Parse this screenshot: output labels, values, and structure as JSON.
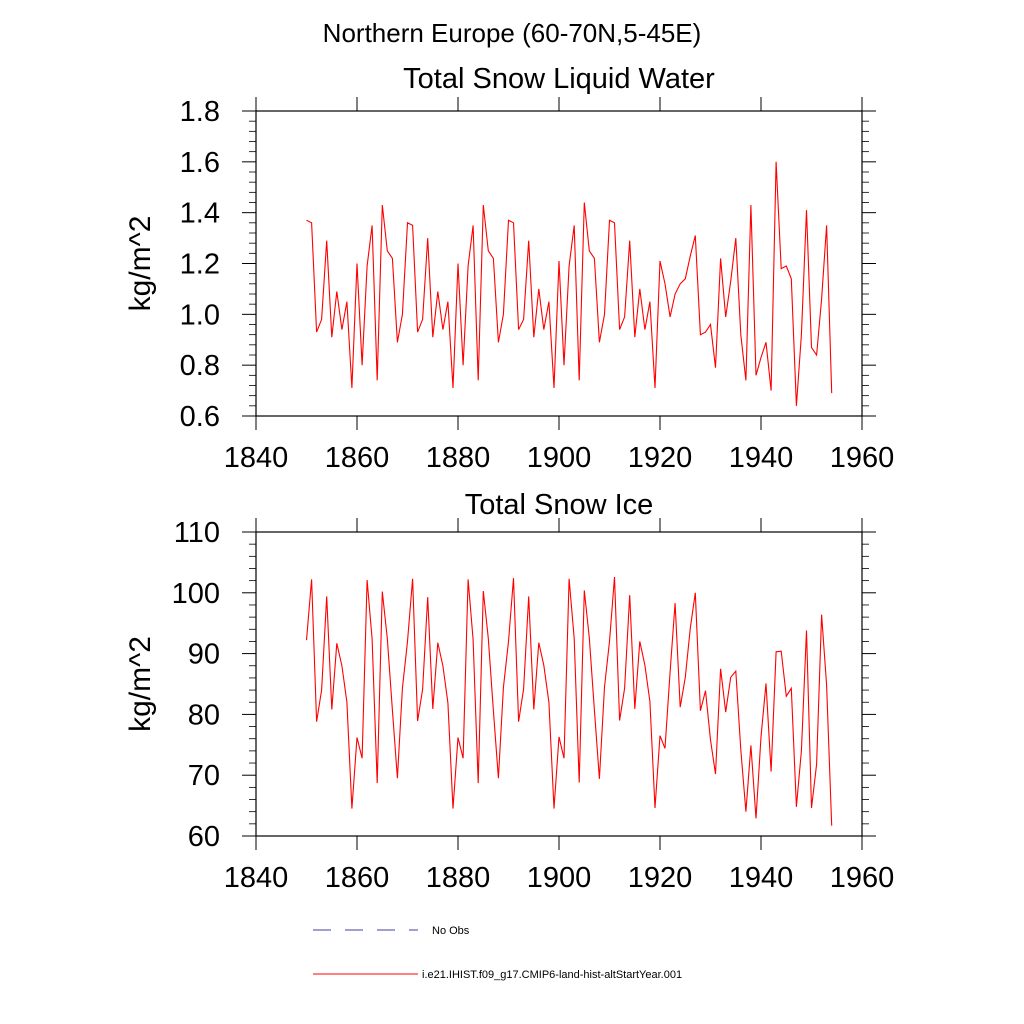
{
  "page_title": "Northern Europe (60-70N,5-45E)",
  "chart_data": [
    {
      "type": "line",
      "title": "Total Snow Liquid Water",
      "xlabel": "",
      "ylabel": "kg/m^2",
      "xlim": [
        1840,
        1960
      ],
      "ylim": [
        0.6,
        1.8
      ],
      "xticks": [
        1840,
        1860,
        1880,
        1900,
        1920,
        1940,
        1960
      ],
      "xtick_labels": [
        "1840",
        "1860",
        "1880",
        "1900",
        "1920",
        "1940",
        "1960"
      ],
      "yticks": [
        0.6,
        0.8,
        1.0,
        1.2,
        1.4,
        1.6,
        1.8
      ],
      "ytick_labels": [
        "0.6",
        "0.8",
        "1.0",
        "1.2",
        "1.4",
        "1.6",
        "1.8"
      ],
      "grid": false,
      "series": [
        {
          "name": "i.e21.IHIST.f09_g17.CMIP6-land-hist-altStartYear.001",
          "color": "#ff0000",
          "x": [
            1850,
            1851,
            1852,
            1853,
            1854,
            1855,
            1856,
            1857,
            1858,
            1859,
            1860,
            1861,
            1862,
            1863,
            1864,
            1865,
            1866,
            1867,
            1868,
            1869,
            1870,
            1871,
            1872,
            1873,
            1874,
            1875,
            1876,
            1877,
            1878,
            1879,
            1880,
            1881,
            1882,
            1883,
            1884,
            1885,
            1886,
            1887,
            1888,
            1889,
            1890,
            1891,
            1892,
            1893,
            1894,
            1895,
            1896,
            1897,
            1898,
            1899,
            1900,
            1901,
            1902,
            1903,
            1904,
            1905,
            1906,
            1907,
            1908,
            1909,
            1910,
            1911,
            1912,
            1913,
            1914,
            1915,
            1916,
            1917,
            1918,
            1919,
            1920,
            1921,
            1922,
            1923,
            1924,
            1925,
            1926,
            1927,
            1928,
            1929,
            1930,
            1931,
            1932,
            1933,
            1934,
            1935,
            1936,
            1937,
            1938,
            1939,
            1940,
            1941,
            1942,
            1943,
            1944,
            1945,
            1946,
            1947,
            1948,
            1949,
            1950,
            1951,
            1952,
            1953,
            1954
          ],
          "y": [
            1.37,
            1.36,
            0.93,
            0.98,
            1.29,
            0.91,
            1.09,
            0.94,
            1.05,
            0.71,
            1.2,
            0.8,
            1.19,
            1.35,
            0.74,
            1.43,
            1.25,
            1.22,
            0.89,
            1.0,
            1.36,
            1.35,
            0.93,
            0.98,
            1.3,
            0.91,
            1.09,
            0.94,
            1.05,
            0.71,
            1.2,
            0.8,
            1.19,
            1.35,
            0.74,
            1.43,
            1.25,
            1.22,
            0.89,
            1.0,
            1.37,
            1.36,
            0.94,
            0.98,
            1.29,
            0.91,
            1.1,
            0.94,
            1.05,
            0.71,
            1.21,
            0.8,
            1.19,
            1.35,
            0.74,
            1.44,
            1.25,
            1.22,
            0.89,
            1.0,
            1.37,
            1.36,
            0.94,
            0.99,
            1.29,
            0.91,
            1.1,
            0.94,
            1.05,
            0.71,
            1.21,
            1.12,
            0.99,
            1.08,
            1.12,
            1.14,
            1.23,
            1.31,
            0.92,
            0.93,
            0.96,
            0.79,
            1.22,
            0.99,
            1.13,
            1.3,
            0.92,
            0.74,
            1.43,
            0.76,
            0.83,
            0.89,
            0.7,
            1.6,
            1.18,
            1.19,
            1.14,
            0.64,
            0.92,
            1.41,
            0.87,
            0.84,
            1.06,
            1.35,
            0.69
          ]
        }
      ]
    },
    {
      "type": "line",
      "title": "Total Snow Ice",
      "xlabel": "",
      "ylabel": "kg/m^2",
      "xlim": [
        1840,
        1960
      ],
      "ylim": [
        60,
        110
      ],
      "xticks": [
        1840,
        1860,
        1880,
        1900,
        1920,
        1940,
        1960
      ],
      "xtick_labels": [
        "1840",
        "1860",
        "1880",
        "1900",
        "1920",
        "1940",
        "1960"
      ],
      "yticks": [
        60,
        70,
        80,
        90,
        100,
        110
      ],
      "ytick_labels": [
        "60",
        "70",
        "80",
        "90",
        "100",
        "110"
      ],
      "grid": false,
      "series": [
        {
          "name": "i.e21.IHIST.f09_g17.CMIP6-land-hist-altStartYear.001",
          "color": "#ff0000",
          "x": [
            1850,
            1851,
            1852,
            1853,
            1854,
            1855,
            1856,
            1857,
            1858,
            1859,
            1860,
            1861,
            1862,
            1863,
            1864,
            1865,
            1866,
            1867,
            1868,
            1869,
            1870,
            1871,
            1872,
            1873,
            1874,
            1875,
            1876,
            1877,
            1878,
            1879,
            1880,
            1881,
            1882,
            1883,
            1884,
            1885,
            1886,
            1887,
            1888,
            1889,
            1890,
            1891,
            1892,
            1893,
            1894,
            1895,
            1896,
            1897,
            1898,
            1899,
            1900,
            1901,
            1902,
            1903,
            1904,
            1905,
            1906,
            1907,
            1908,
            1909,
            1910,
            1911,
            1912,
            1913,
            1914,
            1915,
            1916,
            1917,
            1918,
            1919,
            1920,
            1921,
            1922,
            1923,
            1924,
            1925,
            1926,
            1927,
            1928,
            1929,
            1930,
            1931,
            1932,
            1933,
            1934,
            1935,
            1936,
            1937,
            1938,
            1939,
            1940,
            1941,
            1942,
            1943,
            1944,
            1945,
            1946,
            1947,
            1948,
            1949,
            1950,
            1951,
            1952,
            1953,
            1954
          ],
          "y": [
            92.2,
            102.2,
            78.8,
            84.0,
            99.4,
            80.8,
            91.7,
            88.0,
            82.0,
            64.5,
            76.2,
            72.8,
            102.1,
            92.4,
            68.7,
            100.2,
            92.5,
            80.7,
            69.5,
            84.3,
            92.0,
            102.3,
            78.9,
            84.1,
            99.3,
            80.9,
            91.8,
            88.0,
            81.9,
            64.5,
            76.2,
            72.8,
            102.2,
            92.3,
            68.7,
            100.3,
            92.5,
            80.6,
            69.5,
            84.4,
            92.0,
            102.4,
            78.8,
            84.2,
            99.4,
            80.8,
            91.8,
            88.1,
            82.0,
            64.5,
            76.3,
            72.8,
            102.3,
            92.5,
            68.8,
            100.4,
            92.6,
            80.7,
            69.4,
            84.5,
            92.0,
            102.6,
            79.0,
            84.3,
            99.6,
            80.9,
            92.0,
            88.1,
            82.1,
            64.6,
            76.5,
            74.4,
            87.0,
            98.3,
            81.2,
            86.1,
            94.2,
            100.0,
            80.6,
            83.9,
            75.8,
            70.2,
            87.5,
            80.4,
            86.1,
            87.1,
            74.2,
            64.0,
            74.9,
            62.9,
            76.3,
            85.1,
            70.6,
            90.3,
            90.4,
            83.0,
            84.3,
            64.8,
            74.0,
            93.8,
            64.6,
            71.8,
            96.4,
            84.8,
            61.7
          ]
        }
      ]
    }
  ],
  "legend": {
    "items": [
      {
        "label": "No Obs",
        "color": "#40409f",
        "style": "dashed"
      },
      {
        "label": "i.e21.IHIST.f09_g17.CMIP6-land-hist-altStartYear.001",
        "color": "#ff0000",
        "style": "solid"
      }
    ]
  }
}
